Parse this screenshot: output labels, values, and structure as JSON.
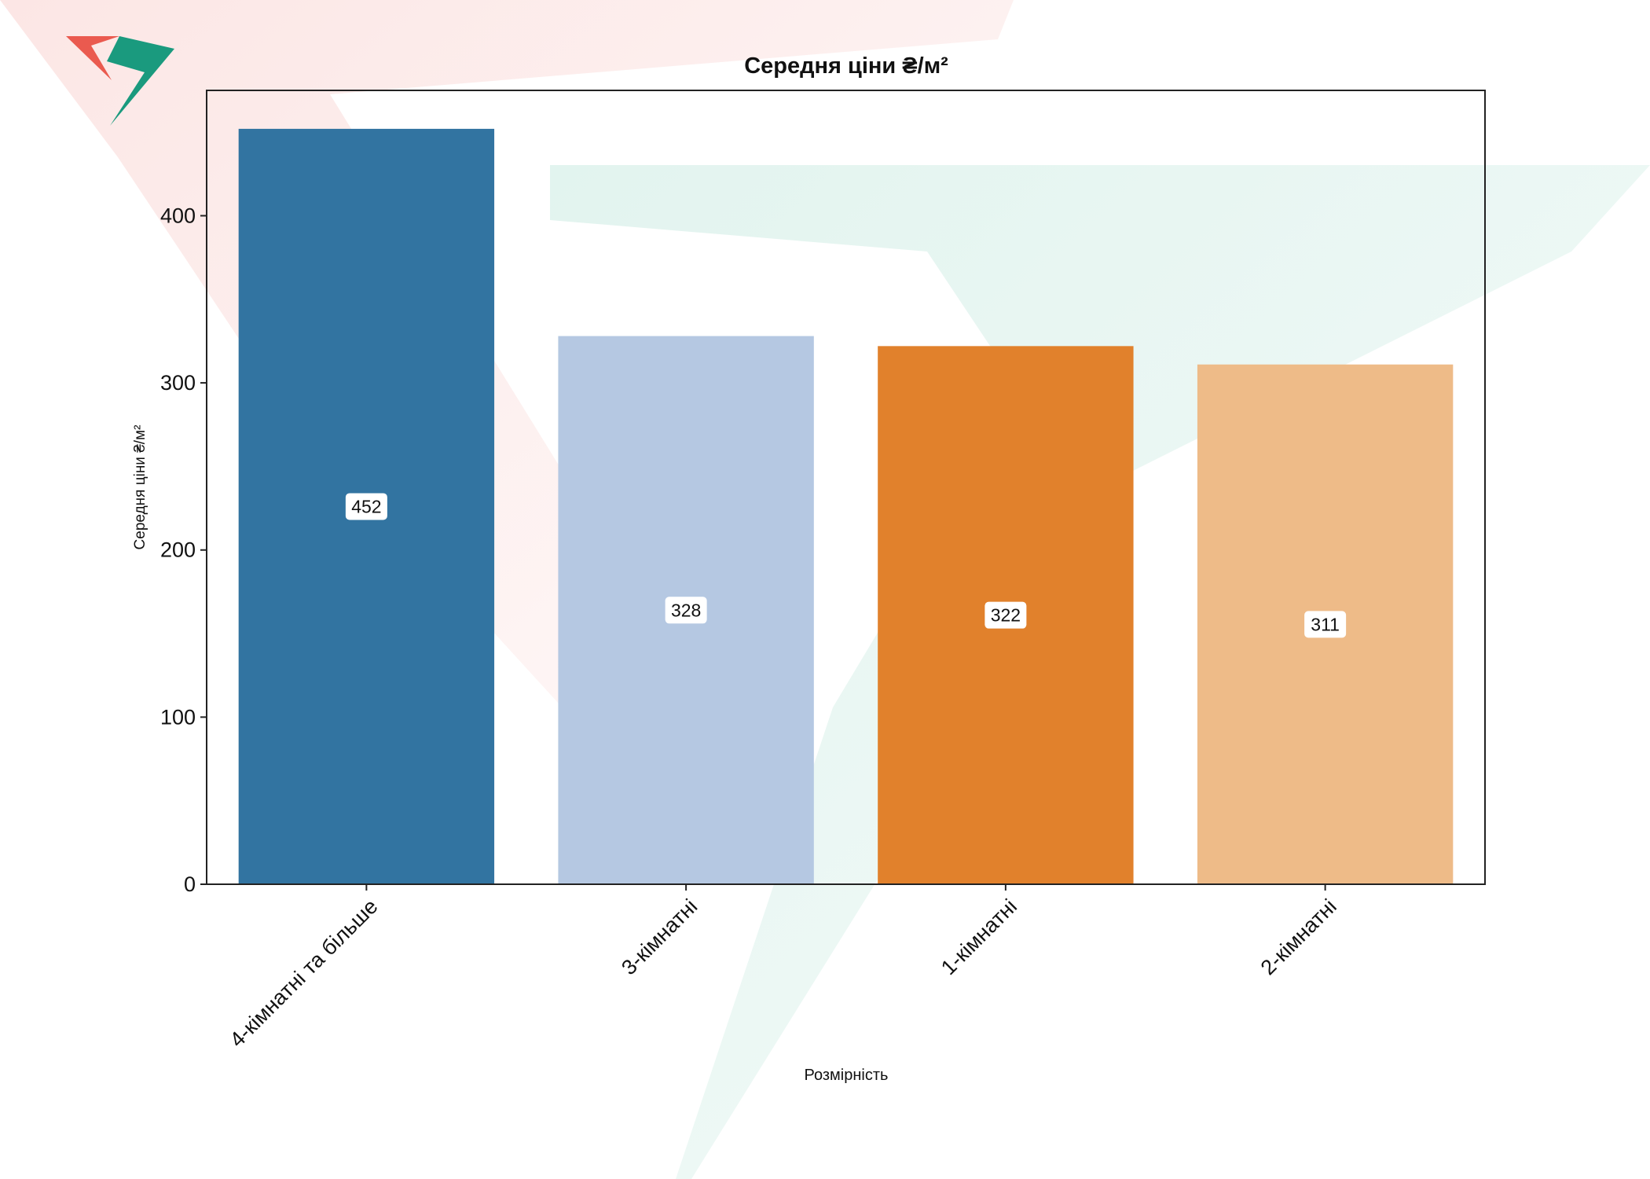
{
  "chart_data": {
    "type": "bar",
    "title": "Середня ціни ₴/м²",
    "xlabel": "Розмірність",
    "ylabel": "Середня ціни ₴/м²",
    "categories": [
      "4-кімнатні та більше",
      "3-кімнатні",
      "1-кімнатні",
      "2-кімнатні"
    ],
    "values": [
      452,
      328,
      322,
      311
    ],
    "data_labels": [
      "452",
      "328",
      "322",
      "311"
    ],
    "colors": [
      "#3274a1",
      "#b5c8e2",
      "#e1812c",
      "#eebb88"
    ],
    "ylim": [
      0,
      475
    ],
    "yticks": [
      0,
      100,
      200,
      300,
      400
    ],
    "ytick_labels": [
      "0",
      "100",
      "200",
      "300",
      "400"
    ],
    "grid": false,
    "legend": "none"
  },
  "logo": {
    "colors": [
      "#ea5a4f",
      "#1a9a7e"
    ],
    "icon": "logo-icon"
  }
}
